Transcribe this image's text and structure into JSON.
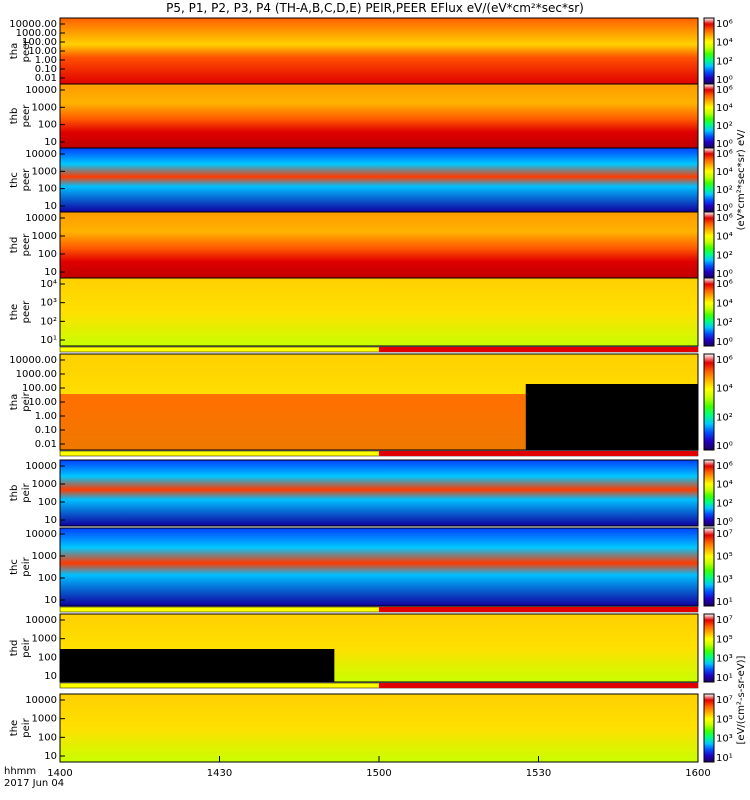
{
  "title": "P5, P1, P2, P3, P4 (TH-A,B,C,D,E) PEIR,PEER EFlux eV/(eV*cm²*sec*sr)",
  "footer": {
    "line1": "hhmm",
    "line2": "2017 Jun 04"
  },
  "xaxis": {
    "ticks": [
      "1400",
      "1430",
      "1500",
      "1530",
      "1600"
    ]
  },
  "colorbar": {
    "label_peer": "(eV*cm²*sec*sr) eV/",
    "label_peir": "[eV/(cm²-s-sr-eV)]",
    "colors": [
      "#1a0060",
      "#2000c0",
      "#0050ff",
      "#00c8ff",
      "#00ff80",
      "#40ff00",
      "#c0ff00",
      "#ffff00",
      "#ffb000",
      "#ff6000",
      "#e00000",
      "#ffffff"
    ],
    "panel_ticks": [
      [
        "10⁰",
        "10²",
        "10⁴",
        "10⁶"
      ],
      [
        "10⁰",
        "10²",
        "10⁴",
        "10⁶"
      ],
      [
        "10⁰",
        "10²",
        "10⁴",
        "10⁶"
      ],
      [
        "10⁰",
        "10²",
        "10⁴",
        "10⁶"
      ],
      [
        "10⁰",
        "10²",
        "10⁴",
        "10⁶"
      ],
      [
        "10⁰",
        "10²",
        "10⁴",
        "10⁶"
      ],
      [
        "10⁰",
        "10²",
        "10⁴",
        "10⁶"
      ],
      [
        "10¹",
        "10³",
        "10⁵",
        "10⁷"
      ],
      [
        "10¹",
        "10³",
        "10⁵",
        "10⁷"
      ],
      [
        "10¹",
        "10³",
        "10⁵",
        "10⁷"
      ]
    ]
  },
  "chart_data": {
    "type": "heatmap",
    "x_range_hhmm": [
      "1400",
      "1600"
    ],
    "panels": [
      {
        "probe": "tha",
        "product": "peer",
        "y_ticks": [
          "10000.00",
          "1000.00",
          "100.00",
          "10.00",
          "1.00",
          "0.10",
          "0.01"
        ],
        "flag_bar": false
      },
      {
        "probe": "thb",
        "product": "peer",
        "y_ticks": [
          "10000",
          "1000",
          "100",
          "10"
        ],
        "flag_bar": false
      },
      {
        "probe": "thc",
        "product": "peer",
        "y_ticks": [
          "10000",
          "1000",
          "100",
          "10"
        ],
        "flag_bar": false
      },
      {
        "probe": "thd",
        "product": "peer",
        "y_ticks": [
          "10000",
          "1000",
          "100",
          "10"
        ],
        "flag_bar": false
      },
      {
        "probe": "the",
        "product": "peer",
        "y_ticks": [
          "10⁴",
          "10³",
          "10²",
          "10¹"
        ],
        "flag_bar": true
      },
      {
        "probe": "tha",
        "product": "peir",
        "y_ticks": [
          "10000.00",
          "1000.00",
          "100.00",
          "10.00",
          "1.00",
          "0.10",
          "0.01"
        ],
        "flag_bar": true
      },
      {
        "probe": "thb",
        "product": "peir",
        "y_ticks": [
          "10000",
          "1000",
          "100",
          "10"
        ],
        "flag_bar": false
      },
      {
        "probe": "thc",
        "product": "peir",
        "y_ticks": [
          "10000",
          "1000",
          "100",
          "10"
        ],
        "flag_bar": true
      },
      {
        "probe": "thd",
        "product": "peir",
        "y_ticks": [
          "10000",
          "1000",
          "100",
          "10"
        ],
        "flag_bar": true
      },
      {
        "probe": "the",
        "product": "peir",
        "y_ticks": [
          "10000",
          "1000",
          "100",
          "10"
        ],
        "flag_bar": false
      }
    ]
  }
}
